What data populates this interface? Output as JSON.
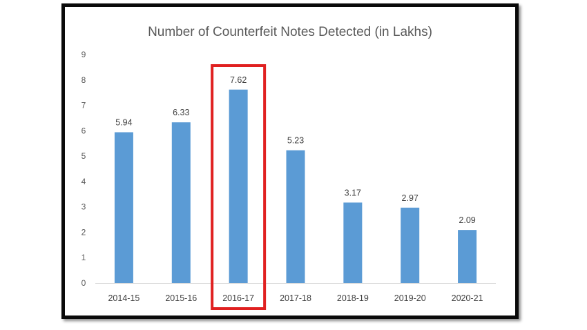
{
  "chart_data": {
    "type": "bar",
    "title": "Number of Counterfeit Notes Detected (in Lakhs)",
    "categories": [
      "2014-15",
      "2015-16",
      "2016-17",
      "2017-18",
      "2018-19",
      "2019-20",
      "2020-21"
    ],
    "values": [
      5.94,
      6.33,
      7.62,
      5.23,
      3.17,
      2.97,
      2.09
    ],
    "value_labels": [
      "5.94",
      "6.33",
      "7.62",
      "5.23",
      "3.17",
      "2.97",
      "2.09"
    ],
    "y_ticks": [
      "0",
      "1",
      "2",
      "3",
      "4",
      "5",
      "6",
      "7",
      "8",
      "9"
    ],
    "ylim": [
      0,
      9
    ],
    "grid": false,
    "highlighted_category": "2016-17",
    "colors": {
      "bar": "#5b9bd5",
      "highlight_box": "#e02020",
      "frame": "#0a0a0a",
      "axis": "#d9d9d9"
    }
  }
}
